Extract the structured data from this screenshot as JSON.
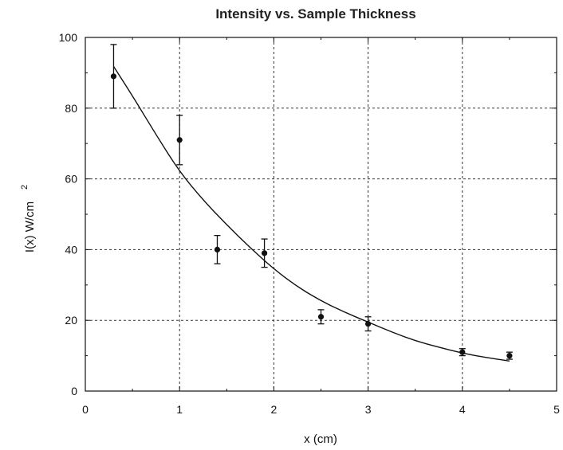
{
  "chart_data": {
    "type": "scatter",
    "title": "Intensity vs. Sample Thickness",
    "xlabel": "x (cm)",
    "ylabel": "I(x)  W/cm",
    "ylabel_superscript": "2",
    "xlim": [
      0,
      5
    ],
    "ylim": [
      0,
      100
    ],
    "xticks": [
      "0",
      "1",
      "2",
      "3",
      "4",
      "5"
    ],
    "yticks": [
      "0",
      "20",
      "40",
      "60",
      "80",
      "100"
    ],
    "grid": "dashed",
    "series": [
      {
        "points": [
          {
            "x": 0.3,
            "y": 89,
            "err": 9
          },
          {
            "x": 1.0,
            "y": 71,
            "err": 7
          },
          {
            "x": 1.4,
            "y": 40,
            "err": 4
          },
          {
            "x": 1.9,
            "y": 39,
            "err": 4
          },
          {
            "x": 2.5,
            "y": 21,
            "err": 2
          },
          {
            "x": 3.0,
            "y": 19,
            "err": 2
          },
          {
            "x": 4.0,
            "y": 11,
            "err": 1
          },
          {
            "x": 4.5,
            "y": 10,
            "err": 1
          }
        ]
      }
    ],
    "fit_curve": {
      "type": "exponential",
      "x": [
        0.3,
        0.5,
        0.75,
        1.0,
        1.25,
        1.5,
        1.75,
        2.0,
        2.25,
        2.5,
        2.75,
        3.0,
        3.25,
        3.5,
        3.75,
        4.0,
        4.25,
        4.5
      ],
      "y": [
        91.8,
        83.5,
        72.5,
        62.0,
        54.0,
        47.0,
        40.5,
        34.5,
        29.5,
        25.5,
        22.3,
        19.5,
        16.7,
        14.2,
        12.4,
        10.7,
        9.5,
        8.5
      ]
    }
  }
}
